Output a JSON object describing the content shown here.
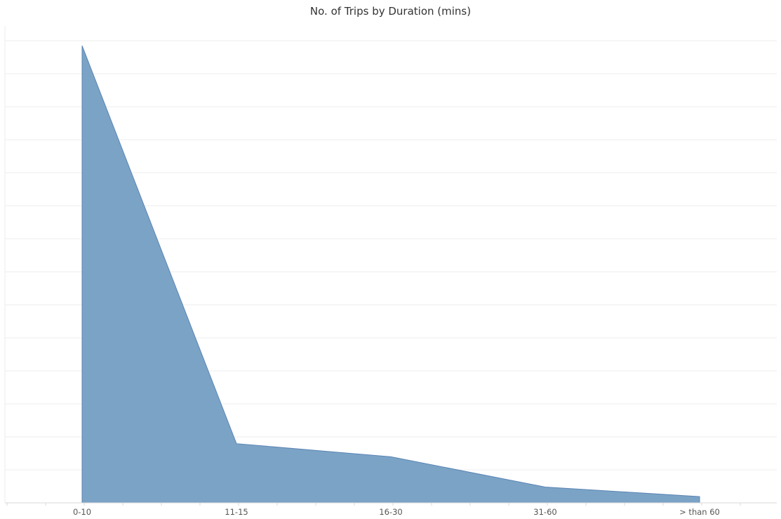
{
  "chart_data": {
    "type": "area",
    "title": "No. of Trips by Duration (mins)",
    "xlabel": "",
    "ylabel": "",
    "categories": [
      "0-10",
      "11-15",
      "16-30",
      "31-60",
      "> than 60"
    ],
    "series": [
      {
        "values": [
          13.9,
          1.8,
          1.4,
          0.48,
          0.19
        ]
      }
    ],
    "ylim": [
      0,
      14.5
    ],
    "grid": true,
    "colors": {
      "area_fill": "#7ba3c6",
      "area_stroke": "#5b85b3",
      "grid": "#ececec",
      "axis": "#d8d8d8"
    }
  }
}
